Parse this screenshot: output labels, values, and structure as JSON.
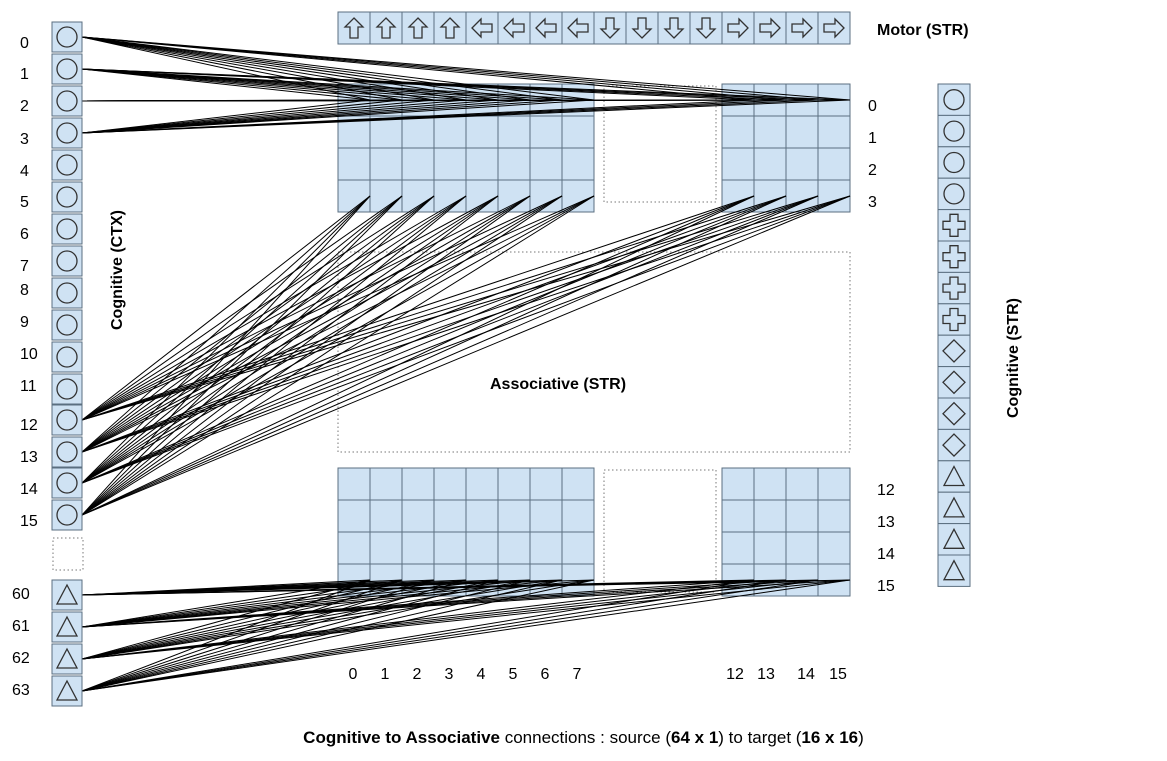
{
  "labels": {
    "motor": "Motor  (STR)",
    "associative": "Associative (STR)",
    "cognitive_ctx": "Cognitive  (CTX)",
    "cognitive_str": "Cognitive  (STR)"
  },
  "caption": {
    "part1_bold": "Cognitive to Associative",
    "part2": " connections : source (",
    "part3_bold": "64 x 1",
    "part4": ") to target (",
    "part5_bold": "16 x 16",
    "part6": ")"
  },
  "colors": {
    "cell_fill": "#cfe2f3",
    "cell_stroke": "#5b6f80",
    "line": "#000000"
  },
  "source_nodes_top": [
    {
      "label": "0",
      "icon": "circle"
    },
    {
      "label": "1",
      "icon": "circle"
    },
    {
      "label": "2",
      "icon": "circle"
    },
    {
      "label": "3",
      "icon": "circle"
    },
    {
      "label": "4",
      "icon": "circle"
    },
    {
      "label": "5",
      "icon": "circle"
    },
    {
      "label": "6",
      "icon": "circle"
    },
    {
      "label": "7",
      "icon": "circle"
    },
    {
      "label": "8",
      "icon": "circle"
    },
    {
      "label": "9",
      "icon": "circle"
    },
    {
      "label": "10",
      "icon": "circle"
    },
    {
      "label": "11",
      "icon": "circle"
    },
    {
      "label": "12",
      "icon": "circle"
    },
    {
      "label": "13",
      "icon": "circle"
    },
    {
      "label": "14",
      "icon": "circle"
    },
    {
      "label": "15",
      "icon": "circle"
    }
  ],
  "source_nodes_bottom": [
    {
      "label": "60",
      "icon": "triangle"
    },
    {
      "label": "61",
      "icon": "triangle"
    },
    {
      "label": "62",
      "icon": "triangle"
    },
    {
      "label": "63",
      "icon": "triangle"
    }
  ],
  "motor_icons": [
    "up",
    "up",
    "up",
    "up",
    "left",
    "left",
    "left",
    "left",
    "down",
    "down",
    "down",
    "down",
    "right",
    "right",
    "right",
    "right"
  ],
  "cognitive_str_icons": [
    "circle",
    "circle",
    "circle",
    "circle",
    "plus",
    "plus",
    "plus",
    "plus",
    "diamond",
    "diamond",
    "diamond",
    "diamond",
    "triangle",
    "triangle",
    "triangle",
    "triangle"
  ],
  "grid_row_labels_top": [
    "0",
    "1",
    "2",
    "3"
  ],
  "grid_row_labels_bottom": [
    "12",
    "13",
    "14",
    "15"
  ],
  "grid_col_labels_left": [
    "0",
    "1",
    "2",
    "3",
    "4",
    "5",
    "6",
    "7"
  ],
  "grid_col_labels_right": [
    "12",
    "13",
    "14",
    "15"
  ]
}
